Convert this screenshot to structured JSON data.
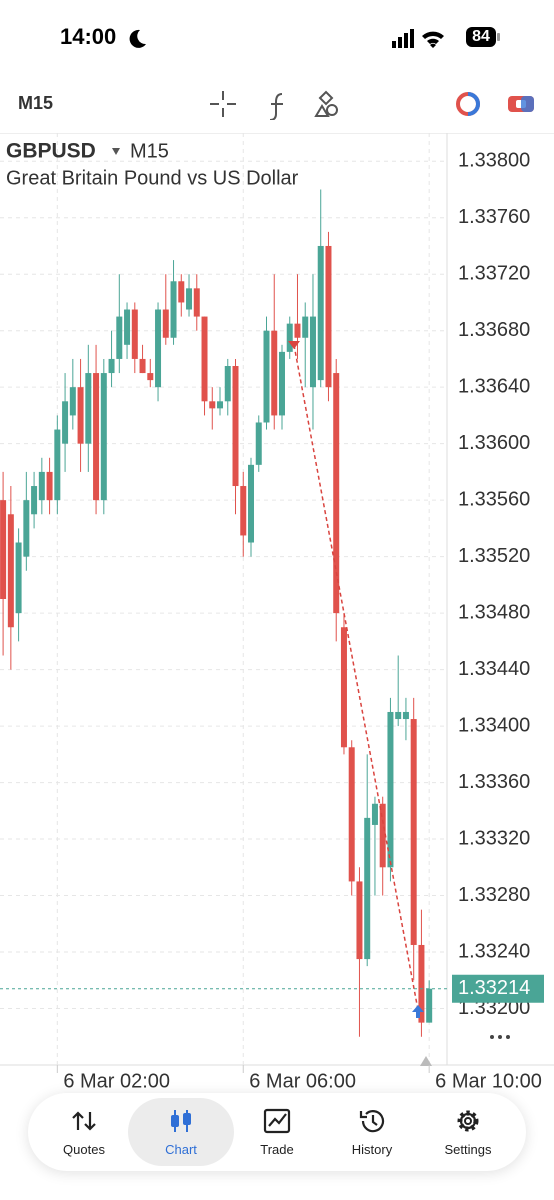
{
  "status_bar": {
    "time": "14:00",
    "battery": "84"
  },
  "toolbar": {
    "timeframe": "M15"
  },
  "chart_data": {
    "type": "candlestick",
    "title": "GBPUSD",
    "timeframe": "M15",
    "subtitle": "Great Britain Pound vs US Dollar",
    "open": [
      1.3356,
      1.3355,
      1.3348,
      1.3352,
      1.3355,
      1.3356,
      1.3358,
      1.3356,
      1.336,
      1.3362,
      1.3364,
      1.336,
      1.3365,
      1.3356,
      1.3365,
      1.3366,
      1.3367,
      1.33695,
      1.3366,
      1.3365,
      1.3364,
      1.33695,
      1.33675,
      1.33715,
      1.33695,
      1.3371,
      1.3369,
      1.3363,
      1.33625,
      1.3363,
      1.33655,
      1.3357,
      1.3353,
      1.33585,
      1.33615,
      1.3368,
      1.3362,
      1.33665,
      1.33685,
      1.33675,
      1.3364,
      1.33645,
      1.3374,
      1.3365,
      1.3347,
      1.33385,
      1.3329,
      1.33235,
      1.3333,
      1.33345,
      1.333,
      1.33405,
      1.33405,
      1.33405,
      1.33245,
      1.3319
    ],
    "high": [
      1.3358,
      1.3357,
      1.3354,
      1.3358,
      1.3358,
      1.3359,
      1.3359,
      1.3362,
      1.3365,
      1.3366,
      1.3366,
      1.3367,
      1.3367,
      1.3366,
      1.3368,
      1.3372,
      1.337,
      1.337,
      1.3367,
      1.3366,
      1.337,
      1.3372,
      1.3373,
      1.3372,
      1.3372,
      1.3372,
      1.3369,
      1.3364,
      1.3364,
      1.3366,
      1.3366,
      1.3358,
      1.3359,
      1.3362,
      1.3369,
      1.3372,
      1.3367,
      1.3369,
      1.3372,
      1.337,
      1.3372,
      1.3378,
      1.3375,
      1.3366,
      1.3348,
      1.3339,
      1.333,
      1.3338,
      1.3335,
      1.3335,
      1.3342,
      1.3345,
      1.3342,
      1.3342,
      1.3327,
      1.3322
    ],
    "low": [
      1.3345,
      1.3344,
      1.3346,
      1.3351,
      1.3354,
      1.3355,
      1.3355,
      1.3355,
      1.3358,
      1.3361,
      1.3358,
      1.3358,
      1.3355,
      1.3355,
      1.3364,
      1.3365,
      1.3366,
      1.3365,
      1.3365,
      1.3364,
      1.3363,
      1.3367,
      1.3367,
      1.3369,
      1.3369,
      1.3368,
      1.3362,
      1.3361,
      1.3362,
      1.3362,
      1.3355,
      1.3352,
      1.3352,
      1.3358,
      1.3361,
      1.3361,
      1.3361,
      1.3366,
      1.3366,
      1.3364,
      1.3361,
      1.3364,
      1.3363,
      1.3346,
      1.3338,
      1.3328,
      1.3318,
      1.3323,
      1.3328,
      1.3328,
      1.3329,
      1.334,
      1.3339,
      1.3322,
      1.3318,
      1.3319
    ],
    "close": [
      1.3349,
      1.3347,
      1.3353,
      1.3356,
      1.3357,
      1.3358,
      1.3356,
      1.3361,
      1.3363,
      1.3364,
      1.336,
      1.3365,
      1.3356,
      1.3365,
      1.3366,
      1.3369,
      1.33695,
      1.3366,
      1.3365,
      1.33645,
      1.33695,
      1.33675,
      1.33715,
      1.337,
      1.3371,
      1.3369,
      1.3363,
      1.33625,
      1.3363,
      1.33655,
      1.3357,
      1.33535,
      1.33585,
      1.33615,
      1.3368,
      1.3362,
      1.33665,
      1.33685,
      1.33675,
      1.3369,
      1.3369,
      1.3374,
      1.3364,
      1.3348,
      1.33385,
      1.3329,
      1.33235,
      1.33335,
      1.33345,
      1.333,
      1.3341,
      1.3341,
      1.3341,
      1.33245,
      1.3319,
      1.33214
    ],
    "up_color": "#4aa596",
    "down_color": "#e0524c",
    "current_price": 1.33214,
    "xlim": [
      -0.4,
      57.3
    ],
    "xticks": [
      {
        "value": 7,
        "label": "6 Mar 02:00"
      },
      {
        "value": 31,
        "label": "6 Mar 06:00"
      },
      {
        "value": 55,
        "label": "6 Mar 10:00"
      }
    ],
    "ylim": [
      1.3316,
      1.3382
    ],
    "yticks": [
      {
        "value": 1.338,
        "label": "1.33800"
      },
      {
        "value": 1.3376,
        "label": "1.33760"
      },
      {
        "value": 1.3372,
        "label": "1.33720"
      },
      {
        "value": 1.3368,
        "label": "1.33680"
      },
      {
        "value": 1.3364,
        "label": "1.33640"
      },
      {
        "value": 1.336,
        "label": "1.33600"
      },
      {
        "value": 1.3356,
        "label": "1.33560"
      },
      {
        "value": 1.3352,
        "label": "1.33520"
      },
      {
        "value": 1.3348,
        "label": "1.33480"
      },
      {
        "value": 1.3344,
        "label": "1.33440"
      },
      {
        "value": 1.334,
        "label": "1.33400"
      },
      {
        "value": 1.3336,
        "label": "1.33360"
      },
      {
        "value": 1.3332,
        "label": "1.33320"
      },
      {
        "value": 1.3328,
        "label": "1.33280"
      },
      {
        "value": 1.3324,
        "label": "1.33240"
      },
      {
        "value": 1.332,
        "label": "1.33200"
      }
    ],
    "grid": true
  },
  "nav": {
    "tabs": [
      "Quotes",
      "Chart",
      "Trade",
      "History",
      "Settings"
    ]
  }
}
